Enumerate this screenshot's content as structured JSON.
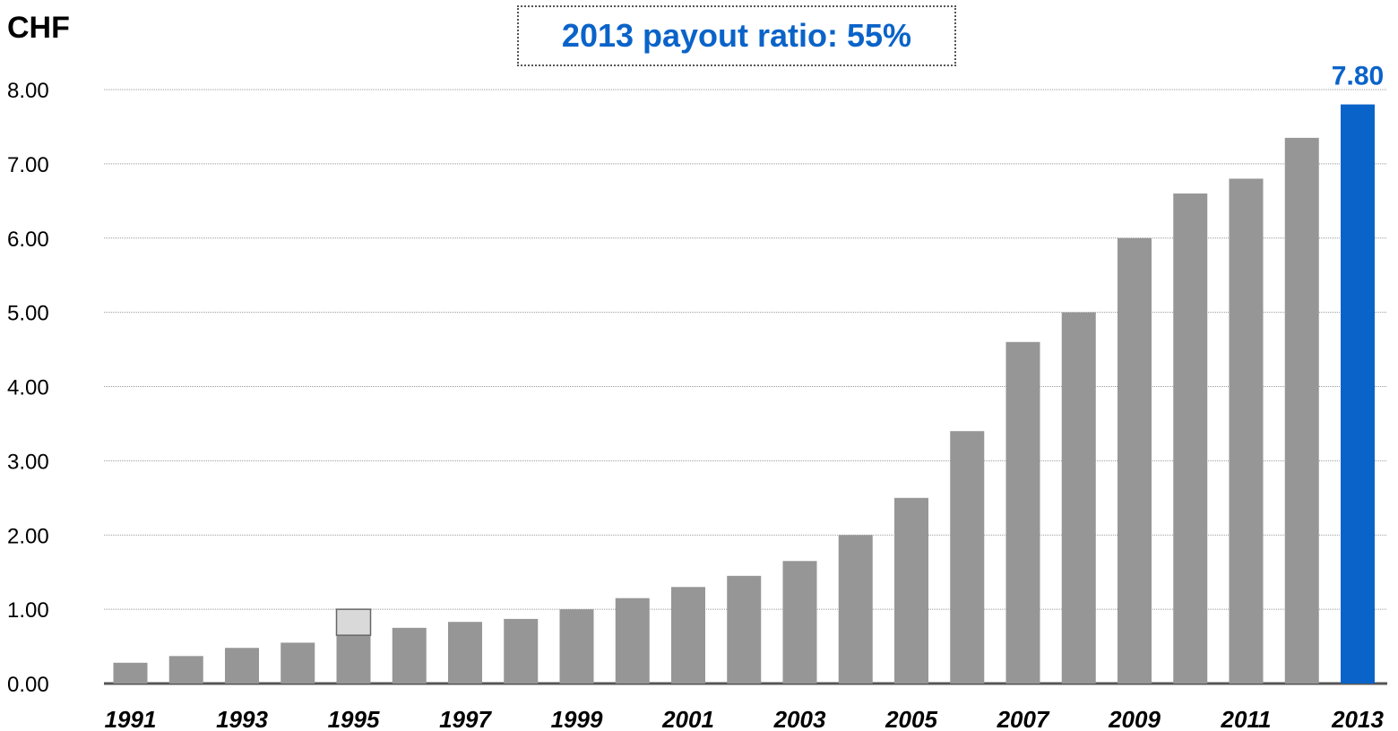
{
  "chart_data": {
    "type": "bar",
    "unit_label": "CHF",
    "callout": "2013 payout ratio: 55%",
    "categories": [
      "1991",
      "1992",
      "1993",
      "1994",
      "1995",
      "1996",
      "1997",
      "1998",
      "1999",
      "2000",
      "2001",
      "2002",
      "2003",
      "2004",
      "2005",
      "2006",
      "2007",
      "2008",
      "2009",
      "2010",
      "2011",
      "2012",
      "2013"
    ],
    "x_tick_labels": [
      "1991",
      "1993",
      "1995",
      "1997",
      "1999",
      "2001",
      "2003",
      "2005",
      "2007",
      "2009",
      "2011",
      "2013"
    ],
    "values": [
      0.28,
      0.37,
      0.48,
      0.55,
      0.65,
      0.75,
      0.83,
      0.87,
      1.0,
      1.15,
      1.3,
      1.45,
      1.65,
      2.0,
      2.5,
      3.4,
      4.6,
      5.0,
      6.0,
      6.6,
      6.8,
      7.35,
      7.8
    ],
    "stacked_extra": {
      "1995": 0.35
    },
    "ylim": [
      0,
      8
    ],
    "yticks": [
      "0.00",
      "1.00",
      "2.00",
      "3.00",
      "4.00",
      "5.00",
      "6.00",
      "7.00",
      "8.00"
    ],
    "grid": true,
    "data_labels": {
      "2013": "7.80"
    },
    "colors": {
      "bar": "#969696",
      "highlight": "#0a63c9",
      "stacked_extra": "#d9d9d9",
      "grid": "#999999"
    }
  }
}
